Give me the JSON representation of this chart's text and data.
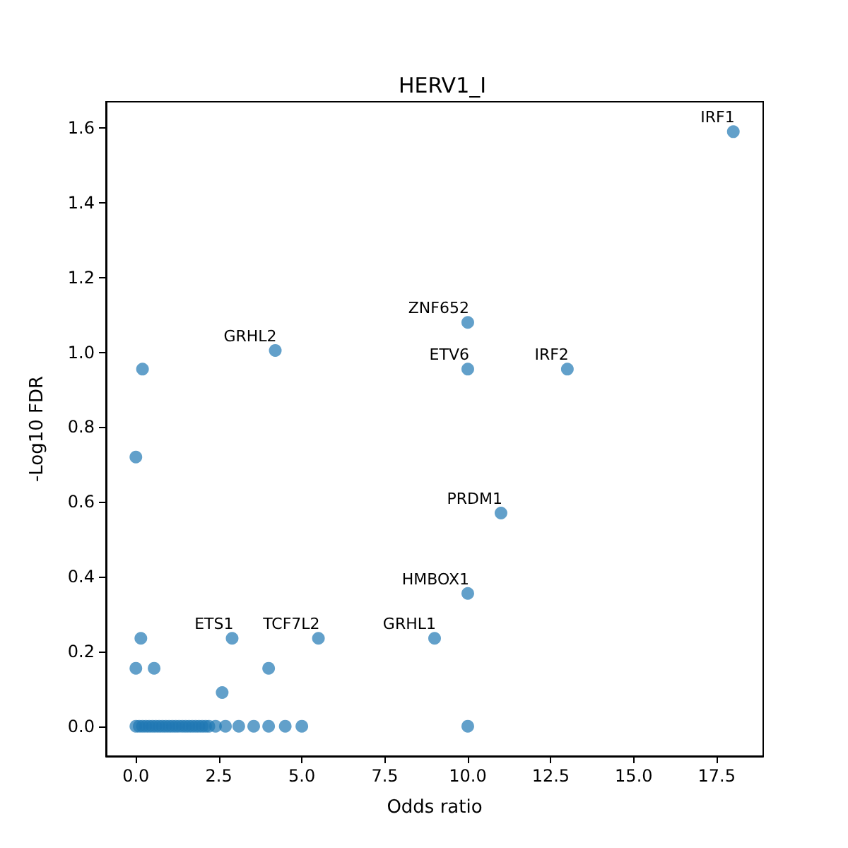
{
  "chart_data": {
    "type": "scatter",
    "title": "HERV1_I",
    "xlabel": "Odds ratio",
    "ylabel": "-Log10 FDR",
    "series": [
      {
        "color": "#1f77b4",
        "x": [
          0,
          0.1,
          0.2,
          0.3,
          0.4,
          0.5,
          0.6,
          0.7,
          0.8,
          0.9,
          1.0,
          1.1,
          1.2,
          1.3,
          1.4,
          1.5,
          1.6,
          1.7,
          1.8,
          1.9,
          2.0,
          2.1,
          2.2,
          2.4,
          2.7,
          3.1,
          3.55,
          4.0,
          4.5,
          5.0,
          10.0,
          18.0,
          10.0,
          4.2,
          0.2,
          10.0,
          13.0,
          0.0,
          11.0,
          10.0,
          9.0,
          2.9,
          5.5,
          0.15,
          0.0,
          0.55,
          4.0,
          2.6
        ],
        "values": [
          0,
          0,
          0,
          0,
          0,
          0,
          0,
          0,
          0,
          0,
          0,
          0,
          0,
          0,
          0,
          0,
          0,
          0,
          0,
          0,
          0,
          0,
          0,
          0,
          0,
          0,
          0,
          0,
          0,
          0,
          0,
          1.59,
          1.08,
          1.005,
          0.955,
          0.955,
          0.955,
          0.72,
          0.57,
          0.355,
          0.235,
          0.235,
          0.235,
          0.235,
          0.155,
          0.155,
          0.155,
          0.09
        ]
      }
    ],
    "annotations": [
      {
        "text": "IRF1",
        "x": 18.0,
        "y": 1.59
      },
      {
        "text": "ZNF652",
        "x": 10.0,
        "y": 1.08
      },
      {
        "text": "GRHL2",
        "x": 4.2,
        "y": 1.005
      },
      {
        "text": "ETV6",
        "x": 10.0,
        "y": 0.955
      },
      {
        "text": "IRF2",
        "x": 13.0,
        "y": 0.955
      },
      {
        "text": "PRDM1",
        "x": 11.0,
        "y": 0.57
      },
      {
        "text": "HMBOX1",
        "x": 10.0,
        "y": 0.355
      },
      {
        "text": "GRHL1",
        "x": 9.0,
        "y": 0.235
      },
      {
        "text": "ETS1",
        "x": 2.9,
        "y": 0.235
      },
      {
        "text": "TCF7L2",
        "x": 5.5,
        "y": 0.235
      }
    ],
    "xlim": [
      -0.9,
      18.9
    ],
    "xticks": [
      {
        "value": 0,
        "label": "0.0"
      },
      {
        "value": 2.5,
        "label": "2.5"
      },
      {
        "value": 5,
        "label": "5.0"
      },
      {
        "value": 7.5,
        "label": "7.5"
      },
      {
        "value": 10,
        "label": "10.0"
      },
      {
        "value": 12.5,
        "label": "12.5"
      },
      {
        "value": 15,
        "label": "15.0"
      },
      {
        "value": 17.5,
        "label": "17.5"
      }
    ],
    "ylim": [
      -0.08,
      1.67
    ],
    "yticks": [
      {
        "value": 0,
        "label": "0.0"
      },
      {
        "value": 0.2,
        "label": "0.2"
      },
      {
        "value": 0.4,
        "label": "0.4"
      },
      {
        "value": 0.6,
        "label": "0.6"
      },
      {
        "value": 0.8,
        "label": "0.8"
      },
      {
        "value": 1.0,
        "label": "1.0"
      },
      {
        "value": 1.2,
        "label": "1.2"
      },
      {
        "value": 1.4,
        "label": "1.4"
      },
      {
        "value": 1.6,
        "label": "1.6"
      }
    ],
    "marker": "circle"
  }
}
